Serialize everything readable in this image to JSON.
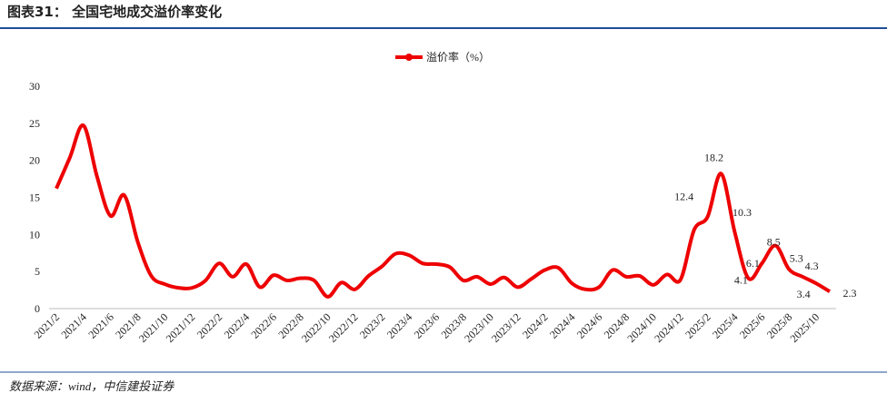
{
  "page": {
    "title": "图表31：  全国宅地成交溢价率变化",
    "source": "数据来源：wind，中信建投证券"
  },
  "chart_data": {
    "type": "line",
    "categories": [
      "2021/2",
      null,
      "2021/4",
      null,
      "2021/6",
      null,
      "2021/8",
      null,
      "2021/10",
      null,
      "2021/12",
      null,
      "2022/2",
      null,
      "2022/4",
      null,
      "2022/6",
      null,
      "2022/8",
      null,
      "2022/10",
      null,
      "2022/12",
      null,
      "2023/2",
      null,
      "2023/4",
      null,
      "2023/6",
      null,
      "2023/8",
      null,
      "2023/10",
      null,
      "2023/12",
      null,
      "2024/2",
      null,
      "2024/4",
      null,
      "2024/6",
      null,
      "2024/8",
      null,
      "2024/10",
      null,
      "2024/12",
      null,
      "2025/2",
      null,
      "2025/4",
      null,
      "2025/6",
      null,
      "2025/8",
      null,
      "2025/10",
      null
    ],
    "series": [
      {
        "name": "溢价率（%）",
        "color": "#ee0000",
        "values": [
          16.2,
          20.4,
          24.7,
          17.8,
          12.5,
          15.3,
          9.0,
          4.4,
          3.3,
          2.8,
          2.8,
          3.8,
          6.1,
          4.3,
          6.0,
          2.9,
          4.5,
          3.8,
          4.1,
          3.8,
          1.6,
          3.5,
          2.6,
          4.4,
          5.7,
          7.4,
          7.2,
          6.1,
          6.0,
          5.6,
          3.8,
          4.3,
          3.3,
          4.2,
          2.9,
          4.0,
          5.2,
          5.5,
          3.4,
          2.6,
          2.9,
          5.2,
          4.3,
          4.4,
          3.2,
          4.6,
          3.9,
          10.6,
          12.4,
          18.2,
          10.3,
          4.1,
          6.1,
          8.5,
          5.3,
          4.3,
          3.4,
          2.3
        ],
        "value_labels": [
          null,
          null,
          null,
          null,
          null,
          null,
          null,
          null,
          null,
          null,
          null,
          null,
          null,
          null,
          null,
          null,
          null,
          null,
          null,
          null,
          null,
          null,
          null,
          null,
          null,
          null,
          null,
          null,
          null,
          null,
          null,
          null,
          null,
          null,
          null,
          null,
          null,
          null,
          null,
          null,
          null,
          null,
          null,
          null,
          null,
          null,
          null,
          null,
          "12.4",
          "18.2",
          "10.3",
          "4.1",
          "6.1",
          "8.5",
          "5.3",
          "4.3",
          "3.4",
          "2.3"
        ]
      }
    ],
    "ylim": [
      0,
      30
    ],
    "yticks": [
      0,
      5,
      10,
      15,
      20,
      25,
      30
    ],
    "legend": "top"
  }
}
